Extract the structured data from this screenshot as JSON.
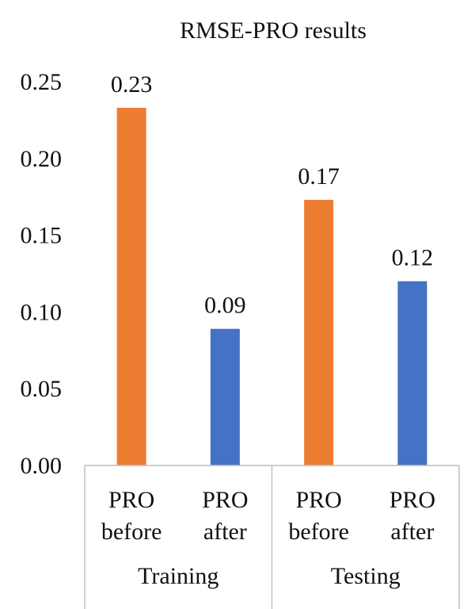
{
  "chart_data": {
    "type": "bar",
    "title": "RMSE-PRO results",
    "xlabel": "",
    "ylabel": "",
    "ylim": [
      0,
      0.25
    ],
    "yticks": [
      "0.00",
      "0.05",
      "0.10",
      "0.15",
      "0.20",
      "0.25"
    ],
    "grid": false,
    "legend": "none",
    "groups": [
      {
        "name": "Training",
        "bars": [
          {
            "label": [
              "PRO",
              "before"
            ],
            "value": 0.233,
            "data_label": "0.23",
            "color": "#ED7D31"
          },
          {
            "label": [
              "PRO",
              "after"
            ],
            "value": 0.089,
            "data_label": "0.09",
            "color": "#4472C4"
          }
        ]
      },
      {
        "name": "Testing",
        "bars": [
          {
            "label": [
              "PRO",
              "before"
            ],
            "value": 0.173,
            "data_label": "0.17",
            "color": "#ED7D31"
          },
          {
            "label": [
              "PRO",
              "after"
            ],
            "value": 0.12,
            "data_label": "0.12",
            "color": "#4472C4"
          }
        ]
      }
    ]
  }
}
